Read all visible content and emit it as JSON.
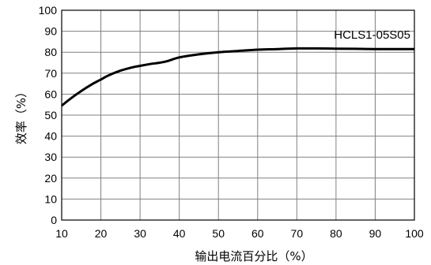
{
  "chart_data": {
    "type": "line",
    "title": "",
    "xlabel": "输出电流百分比（%）",
    "ylabel": "效率（%）",
    "xlim": [
      10,
      100
    ],
    "ylim": [
      0,
      100
    ],
    "x_ticks": [
      10,
      20,
      30,
      40,
      50,
      60,
      70,
      80,
      90,
      100
    ],
    "y_ticks": [
      0,
      10,
      20,
      30,
      40,
      50,
      60,
      70,
      80,
      90,
      100
    ],
    "grid": true,
    "legend": "none",
    "series": [
      {
        "name": "HCLS1-05S05",
        "x": [
          10,
          12,
          15,
          18,
          20,
          22,
          25,
          28,
          30,
          33,
          35,
          37,
          40,
          45,
          50,
          55,
          60,
          65,
          70,
          75,
          80,
          85,
          90,
          95,
          100
        ],
        "y": [
          54.5,
          57.5,
          61.5,
          65,
          67,
          69,
          71.2,
          72.8,
          73.5,
          74.5,
          75,
          75.8,
          77.5,
          79,
          80,
          80.6,
          81.2,
          81.5,
          81.8,
          81.8,
          81.7,
          81.6,
          81.5,
          81.5,
          81.5
        ]
      }
    ],
    "colors": {
      "line": "#000000",
      "grid": "#808080",
      "axis": "#000000"
    }
  }
}
